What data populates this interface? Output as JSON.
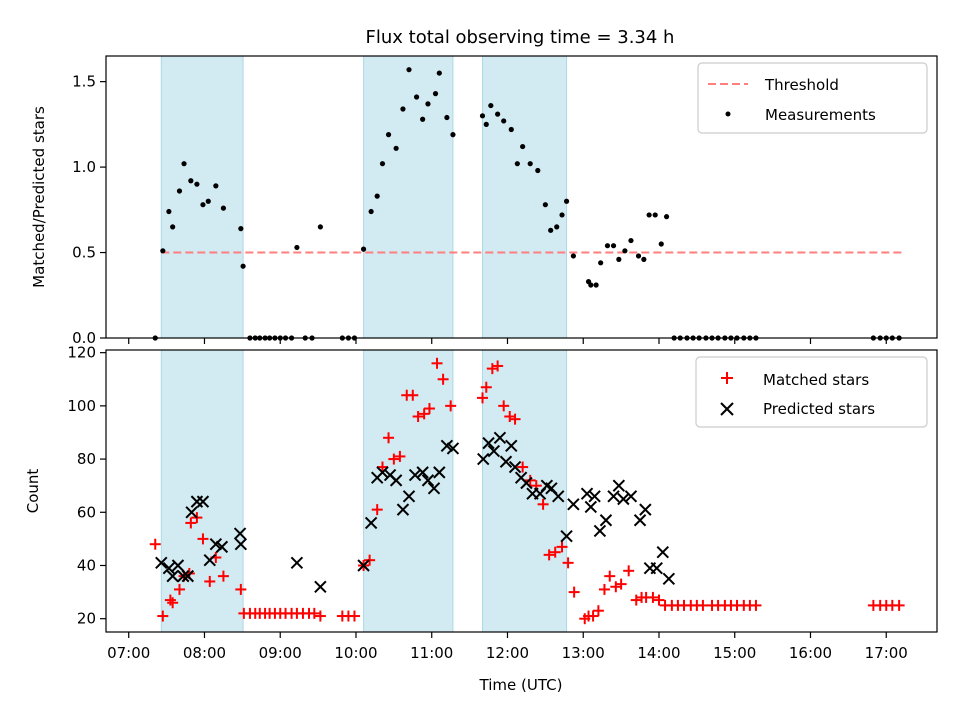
{
  "chart_data": {
    "title": "Flux total observing time = 3.34 h",
    "xlabel": "Time (UTC)",
    "xticks": [
      "07:00",
      "08:00",
      "09:00",
      "10:00",
      "11:00",
      "12:00",
      "13:00",
      "14:00",
      "15:00",
      "16:00",
      "17:00"
    ],
    "x_range_hours": [
      6.7,
      17.67
    ],
    "shaded_spans_hours": [
      [
        7.43,
        8.51
      ],
      [
        10.1,
        11.28
      ],
      [
        11.67,
        12.78
      ]
    ],
    "shade_color": "#add8e6",
    "top": {
      "type": "scatter",
      "ylabel": "Matched/Predicted stars",
      "ylim": [
        0,
        1.65
      ],
      "yticks": [
        "0.0",
        "0.5",
        "1.0",
        "1.5"
      ],
      "threshold": {
        "label": "Threshold",
        "value": 0.5,
        "x": [
          7.43,
          17.2
        ],
        "color": "#ff7f7f"
      },
      "measurements": {
        "label": "Measurements",
        "color": "#000000",
        "points": [
          [
            7.35,
            0
          ],
          [
            7.45,
            0.51
          ],
          [
            7.53,
            0.74
          ],
          [
            7.58,
            0.65
          ],
          [
            7.67,
            0.86
          ],
          [
            7.73,
            1.02
          ],
          [
            7.82,
            0.92
          ],
          [
            7.9,
            0.9
          ],
          [
            7.98,
            0.78
          ],
          [
            8.05,
            0.8
          ],
          [
            8.15,
            0.89
          ],
          [
            8.25,
            0.76
          ],
          [
            8.48,
            0.64
          ],
          [
            8.51,
            0.42
          ],
          [
            8.6,
            0
          ],
          [
            8.67,
            0
          ],
          [
            8.73,
            0
          ],
          [
            8.8,
            0
          ],
          [
            8.86,
            0
          ],
          [
            8.93,
            0
          ],
          [
            9,
            0
          ],
          [
            9.07,
            0
          ],
          [
            9.15,
            0
          ],
          [
            9.22,
            0.53
          ],
          [
            9.33,
            0
          ],
          [
            9.42,
            0
          ],
          [
            9.53,
            0.65
          ],
          [
            9.82,
            0
          ],
          [
            9.9,
            0
          ],
          [
            9.98,
            0
          ],
          [
            10.1,
            0.52
          ],
          [
            10.2,
            0.74
          ],
          [
            10.28,
            0.83
          ],
          [
            10.35,
            1.02
          ],
          [
            10.43,
            1.19
          ],
          [
            10.53,
            1.11
          ],
          [
            10.62,
            1.34
          ],
          [
            10.7,
            1.57
          ],
          [
            10.8,
            1.41
          ],
          [
            10.88,
            1.28
          ],
          [
            10.95,
            1.37
          ],
          [
            11.05,
            1.43
          ],
          [
            11.1,
            1.55
          ],
          [
            11.2,
            1.29
          ],
          [
            11.28,
            1.19
          ],
          [
            11.67,
            1.3
          ],
          [
            11.72,
            1.25
          ],
          [
            11.78,
            1.36
          ],
          [
            11.87,
            1.31
          ],
          [
            11.95,
            1.27
          ],
          [
            12.05,
            1.22
          ],
          [
            12.13,
            1.02
          ],
          [
            12.2,
            1.12
          ],
          [
            12.3,
            1.02
          ],
          [
            12.4,
            0.98
          ],
          [
            12.5,
            0.78
          ],
          [
            12.57,
            0.63
          ],
          [
            12.65,
            0.65
          ],
          [
            12.72,
            0.72
          ],
          [
            12.78,
            0.8
          ],
          [
            12.87,
            0.48
          ],
          [
            13.07,
            0.33
          ],
          [
            13.1,
            0.31
          ],
          [
            13.17,
            0.31
          ],
          [
            13.23,
            0.44
          ],
          [
            13.32,
            0.54
          ],
          [
            13.4,
            0.54
          ],
          [
            13.47,
            0.46
          ],
          [
            13.55,
            0.51
          ],
          [
            13.63,
            0.57
          ],
          [
            13.73,
            0.48
          ],
          [
            13.8,
            0.46
          ],
          [
            13.87,
            0.72
          ],
          [
            13.95,
            0.72
          ],
          [
            14.03,
            0.55
          ],
          [
            14.1,
            0.71
          ],
          [
            14.2,
            0
          ],
          [
            14.28,
            0
          ],
          [
            14.37,
            0
          ],
          [
            14.45,
            0
          ],
          [
            14.53,
            0
          ],
          [
            14.62,
            0
          ],
          [
            14.7,
            0
          ],
          [
            14.78,
            0
          ],
          [
            14.87,
            0
          ],
          [
            14.95,
            0
          ],
          [
            15.03,
            0
          ],
          [
            15.12,
            0
          ],
          [
            15.2,
            0
          ],
          [
            15.28,
            0
          ],
          [
            16.83,
            0
          ],
          [
            16.92,
            0
          ],
          [
            17.0,
            0
          ],
          [
            17.08,
            0
          ],
          [
            17.17,
            0
          ]
        ]
      }
    },
    "bottom": {
      "type": "scatter",
      "ylabel": "Count",
      "ylim": [
        15,
        121
      ],
      "yticks": [
        "20",
        "40",
        "60",
        "80",
        "100",
        "120"
      ],
      "matched": {
        "label": "Matched stars",
        "color": "#ff0000",
        "marker": "plus",
        "points": [
          [
            7.35,
            48
          ],
          [
            7.45,
            21
          ],
          [
            7.55,
            27
          ],
          [
            7.58,
            26
          ],
          [
            7.67,
            31
          ],
          [
            7.73,
            36
          ],
          [
            7.8,
            37
          ],
          [
            7.82,
            56
          ],
          [
            7.9,
            58
          ],
          [
            7.98,
            50
          ],
          [
            8.07,
            34
          ],
          [
            8.15,
            43
          ],
          [
            8.25,
            36
          ],
          [
            8.48,
            31
          ],
          [
            8.52,
            22
          ],
          [
            8.6,
            22
          ],
          [
            8.67,
            22
          ],
          [
            8.73,
            22
          ],
          [
            8.8,
            22
          ],
          [
            8.86,
            22
          ],
          [
            8.93,
            22
          ],
          [
            9,
            22
          ],
          [
            9.07,
            22
          ],
          [
            9.15,
            22
          ],
          [
            9.22,
            22
          ],
          [
            9.3,
            22
          ],
          [
            9.38,
            22
          ],
          [
            9.45,
            22
          ],
          [
            9.53,
            21
          ],
          [
            9.82,
            21
          ],
          [
            9.9,
            21
          ],
          [
            9.98,
            21
          ],
          [
            10.1,
            40
          ],
          [
            10.18,
            42
          ],
          [
            10.28,
            61
          ],
          [
            10.35,
            77
          ],
          [
            10.43,
            88
          ],
          [
            10.5,
            80
          ],
          [
            10.58,
            81
          ],
          [
            10.67,
            104
          ],
          [
            10.75,
            104
          ],
          [
            10.82,
            96
          ],
          [
            10.9,
            97
          ],
          [
            10.97,
            99
          ],
          [
            11.07,
            116
          ],
          [
            11.15,
            110
          ],
          [
            11.25,
            100
          ],
          [
            11.67,
            103
          ],
          [
            11.72,
            107
          ],
          [
            11.8,
            114
          ],
          [
            11.87,
            115
          ],
          [
            11.95,
            100
          ],
          [
            12.03,
            96
          ],
          [
            12.1,
            95
          ],
          [
            12.2,
            77
          ],
          [
            12.3,
            72
          ],
          [
            12.38,
            70
          ],
          [
            12.47,
            63
          ],
          [
            12.55,
            44
          ],
          [
            12.63,
            45
          ],
          [
            12.72,
            47
          ],
          [
            12.8,
            41
          ],
          [
            12.88,
            30
          ],
          [
            13.02,
            20
          ],
          [
            13.07,
            21
          ],
          [
            13.13,
            21
          ],
          [
            13.2,
            23
          ],
          [
            13.28,
            31
          ],
          [
            13.35,
            36
          ],
          [
            13.43,
            32
          ],
          [
            13.5,
            33
          ],
          [
            13.6,
            38
          ],
          [
            13.7,
            27
          ],
          [
            13.77,
            28
          ],
          [
            13.83,
            28
          ],
          [
            13.92,
            28
          ],
          [
            14.0,
            27
          ],
          [
            14.08,
            25
          ],
          [
            14.17,
            25
          ],
          [
            14.25,
            25
          ],
          [
            14.33,
            25
          ],
          [
            14.42,
            25
          ],
          [
            14.5,
            25
          ],
          [
            14.58,
            25
          ],
          [
            14.7,
            25
          ],
          [
            14.78,
            25
          ],
          [
            14.87,
            25
          ],
          [
            14.95,
            25
          ],
          [
            15.03,
            25
          ],
          [
            15.12,
            25
          ],
          [
            15.2,
            25
          ],
          [
            15.28,
            25
          ],
          [
            16.83,
            25
          ],
          [
            16.92,
            25
          ],
          [
            17.0,
            25
          ],
          [
            17.08,
            25
          ],
          [
            17.17,
            25
          ]
        ]
      },
      "predicted": {
        "label": "Predicted stars",
        "color": "#000000",
        "marker": "x",
        "points": [
          [
            7.43,
            41
          ],
          [
            7.53,
            39
          ],
          [
            7.58,
            36
          ],
          [
            7.65,
            40
          ],
          [
            7.72,
            36
          ],
          [
            7.78,
            36
          ],
          [
            7.83,
            60
          ],
          [
            7.9,
            64
          ],
          [
            7.98,
            64
          ],
          [
            8.07,
            42
          ],
          [
            8.15,
            48
          ],
          [
            8.23,
            47
          ],
          [
            8.47,
            52
          ],
          [
            8.48,
            48
          ],
          [
            9.22,
            41
          ],
          [
            9.53,
            32
          ],
          [
            10.1,
            40
          ],
          [
            10.2,
            56
          ],
          [
            10.28,
            73
          ],
          [
            10.35,
            75
          ],
          [
            10.45,
            74
          ],
          [
            10.53,
            72
          ],
          [
            10.62,
            61
          ],
          [
            10.7,
            66
          ],
          [
            10.78,
            74
          ],
          [
            10.88,
            75
          ],
          [
            10.95,
            72
          ],
          [
            11.03,
            69
          ],
          [
            11.1,
            75
          ],
          [
            11.2,
            85
          ],
          [
            11.28,
            84
          ],
          [
            11.68,
            80
          ],
          [
            11.75,
            86
          ],
          [
            11.82,
            83
          ],
          [
            11.9,
            88
          ],
          [
            11.98,
            79
          ],
          [
            12.05,
            85
          ],
          [
            12.1,
            77
          ],
          [
            12.18,
            73
          ],
          [
            12.25,
            71
          ],
          [
            12.33,
            67
          ],
          [
            12.43,
            67
          ],
          [
            12.52,
            70
          ],
          [
            12.58,
            69
          ],
          [
            12.67,
            66
          ],
          [
            12.78,
            51
          ],
          [
            12.87,
            63
          ],
          [
            13.05,
            67
          ],
          [
            13.1,
            62
          ],
          [
            13.15,
            66
          ],
          [
            13.22,
            53
          ],
          [
            13.3,
            57
          ],
          [
            13.4,
            66
          ],
          [
            13.47,
            70
          ],
          [
            13.53,
            65
          ],
          [
            13.63,
            66
          ],
          [
            13.75,
            57
          ],
          [
            13.82,
            61
          ],
          [
            13.88,
            39
          ],
          [
            13.97,
            39
          ],
          [
            14.05,
            45
          ],
          [
            14.13,
            35
          ]
        ]
      }
    }
  }
}
